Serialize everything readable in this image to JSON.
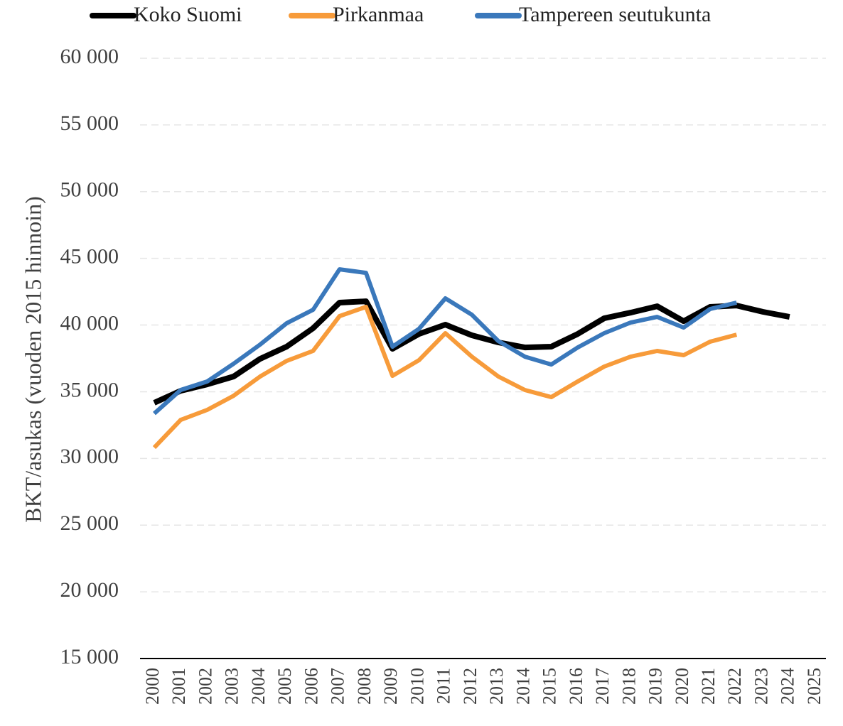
{
  "chart_data": {
    "type": "line",
    "ylabel": "BKT/asukas (vuoden 2015 hinnoin)",
    "categories": [
      "2000",
      "2001",
      "2002",
      "2003",
      "2004",
      "2005",
      "2006",
      "2007",
      "2008",
      "2009",
      "2010",
      "2011",
      "2012",
      "2013",
      "2014",
      "2015",
      "2016",
      "2017",
      "2018",
      "2019",
      "2020",
      "2021",
      "2022",
      "2023",
      "2024",
      "2025"
    ],
    "series": [
      {
        "name": "Koko Suomi",
        "color": "#000000",
        "width": 8,
        "values": [
          34170,
          35070,
          35550,
          36140,
          37470,
          38380,
          39760,
          41680,
          41780,
          38220,
          39330,
          40030,
          39230,
          38700,
          38320,
          38380,
          39330,
          40510,
          40930,
          41410,
          40290,
          41360,
          41460,
          40990,
          40610,
          null
        ]
      },
      {
        "name": "Pirkanmaa",
        "color": "#f79b3a",
        "width": 6,
        "values": [
          30810,
          32890,
          33640,
          34700,
          36140,
          37310,
          38060,
          40670,
          41360,
          36190,
          37360,
          39390,
          37630,
          36140,
          35130,
          34600,
          35770,
          36890,
          37630,
          38060,
          37740,
          38750,
          39280,
          null,
          null,
          null
        ]
      },
      {
        "name": "Tampereen seutukunta",
        "color": "#3a78bb",
        "width": 6,
        "values": [
          33370,
          35130,
          35770,
          37100,
          38540,
          40130,
          41140,
          44180,
          43910,
          38380,
          39710,
          42000,
          40770,
          38800,
          37630,
          37040,
          38320,
          39390,
          40190,
          40610,
          39810,
          41200,
          41680,
          null,
          null,
          null
        ]
      }
    ],
    "ylim": [
      15000,
      60000
    ],
    "yticks": [
      {
        "value": 15000,
        "label": "15 000"
      },
      {
        "value": 20000,
        "label": "20 000"
      },
      {
        "value": 25000,
        "label": "25 000"
      },
      {
        "value": 30000,
        "label": "30 000"
      },
      {
        "value": 35000,
        "label": "35 000"
      },
      {
        "value": 40000,
        "label": "40 000"
      },
      {
        "value": 45000,
        "label": "45 000"
      },
      {
        "value": 50000,
        "label": "50 000"
      },
      {
        "value": 55000,
        "label": "55 000"
      },
      {
        "value": 60000,
        "label": "60 000"
      }
    ],
    "grid": true,
    "legend": "top"
  }
}
